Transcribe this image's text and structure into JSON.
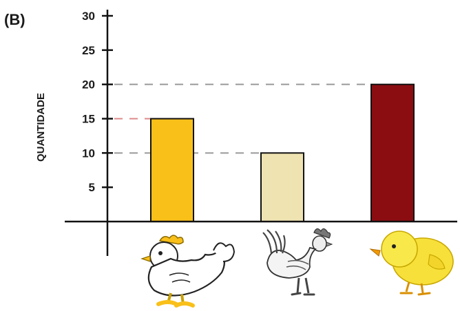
{
  "panel_label": "(B)",
  "chart_data": {
    "type": "bar",
    "title": "",
    "xlabel": "",
    "ylabel": "QUANTIDADE",
    "ylim": [
      0,
      30
    ],
    "yticks": [
      5,
      10,
      15,
      20,
      25,
      30
    ],
    "categories": [
      "galinha",
      "galo",
      "pintinho"
    ],
    "category_icons": [
      "hen-icon",
      "rooster-icon",
      "chick-icon"
    ],
    "values": [
      15,
      10,
      20
    ],
    "bar_colors": [
      "#f9c01a",
      "#efe3b2",
      "#8b0d12"
    ],
    "reference_lines": [
      20,
      15,
      10
    ],
    "grid": false,
    "legend": "none"
  }
}
